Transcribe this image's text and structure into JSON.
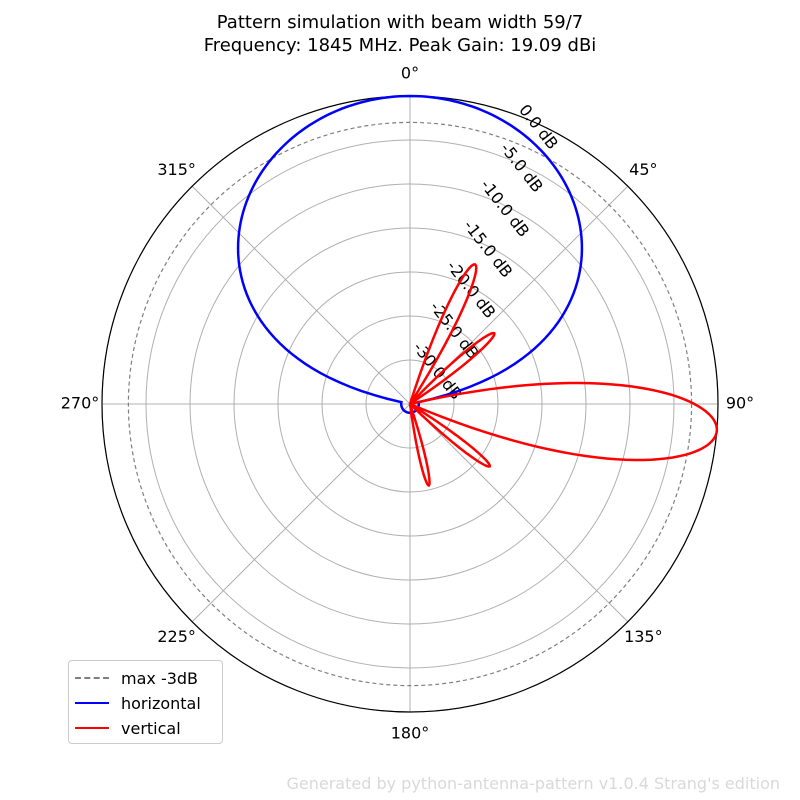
{
  "chart_data": {
    "type": "polar",
    "title": "Pattern simulation with beam width 59/7",
    "subtitle": "Frequency: 1845 MHz. Peak Gain: 19.09 dBi",
    "angle_labels": [
      "0°",
      "45°",
      "90°",
      "135°",
      "180°",
      "225°",
      "270°",
      "315°"
    ],
    "angles_deg": [
      0,
      45,
      90,
      135,
      180,
      225,
      270,
      315
    ],
    "radial_ticks": [
      0,
      -5,
      -10,
      -15,
      -20,
      -25,
      -30
    ],
    "radial_tick_labels": [
      "0.0 dB",
      "-5.0 dB",
      "-10.0 dB",
      "-15.0 dB",
      "-20.0 dB",
      "-25.0 dB",
      "-30.0 dB"
    ],
    "radial_range_db": [
      -35,
      0
    ],
    "reference_db": -3,
    "horizontal_beamwidth_deg": 59,
    "vertical_peak_angle_deg": 95,
    "vertical_peak_db": 0,
    "vertical_lobes": [
      {
        "angle_deg": 25,
        "peak_db": -17.5
      },
      {
        "angle_deg": 50,
        "peak_db": -22.5
      },
      {
        "angle_deg": 128,
        "peak_db": -23.5
      },
      {
        "angle_deg": 167,
        "peak_db": -25.5
      }
    ],
    "grid": true,
    "legend_placement": "lower-left",
    "series": [
      {
        "name": "max -3dB",
        "color": "#7f7f7f",
        "style": "dashed"
      },
      {
        "name": "horizontal",
        "color": "#0000ff",
        "style": "solid"
      },
      {
        "name": "vertical",
        "color": "#ff0000",
        "style": "solid"
      }
    ]
  },
  "footer_text": "Generated by python-antenna-pattern v1.0.4 Strang's edition"
}
